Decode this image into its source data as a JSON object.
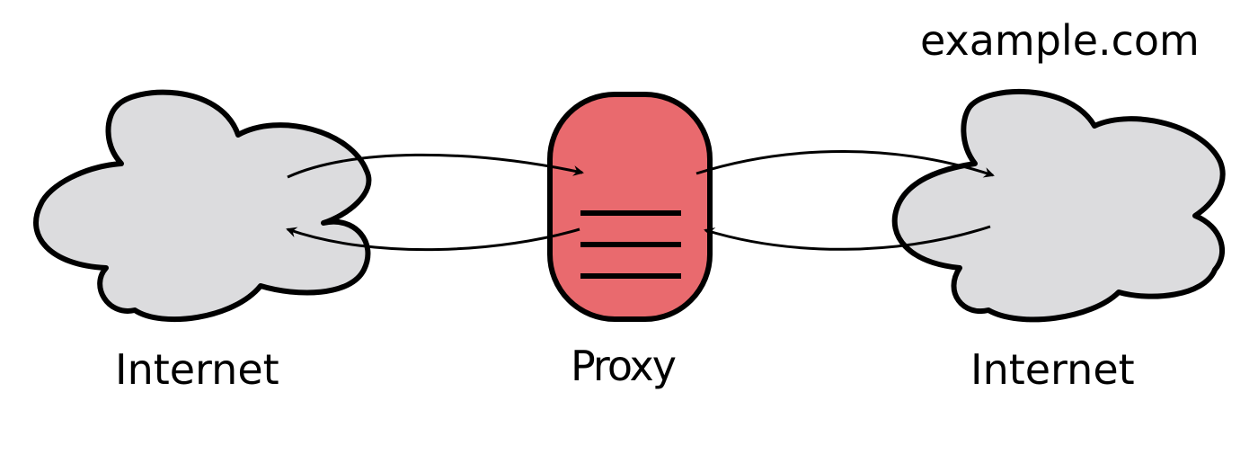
{
  "diagram": {
    "left_cloud_label": "Internet",
    "proxy_label": "Proxy",
    "right_cloud_label": "Internet",
    "domain_label": "example.com"
  },
  "colors": {
    "cloud_fill": "#dcdcde",
    "proxy_fill": "#e96a6e",
    "stroke": "#000000",
    "background": "#ffffff"
  },
  "icons": {
    "left_cloud": "cloud-icon",
    "right_cloud": "cloud-icon",
    "proxy": "server-node-icon"
  }
}
